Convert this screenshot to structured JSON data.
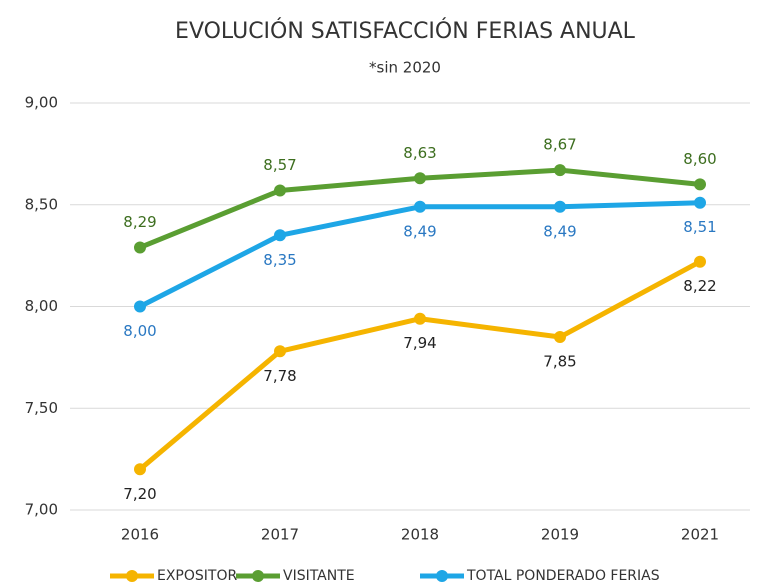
{
  "chart_data": {
    "type": "line",
    "title": "EVOLUCIÓN SATISFACCIÓN FERIAS ANUAL",
    "subtitle": "*sin 2020",
    "categories": [
      "2016",
      "2017",
      "2018",
      "2019",
      "2021"
    ],
    "series": [
      {
        "name": "EXPOSITOR",
        "color": "#f5b400",
        "values": [
          7.2,
          7.78,
          7.94,
          7.85,
          8.22
        ],
        "value_labels": [
          "7,20",
          "7,78",
          "7,94",
          "7,85",
          "8,22"
        ]
      },
      {
        "name": "VISITANTE",
        "color": "#5a9e32",
        "values": [
          8.29,
          8.57,
          8.63,
          8.67,
          8.6
        ],
        "value_labels": [
          "8,29",
          "8,57",
          "8,63",
          "8,67",
          "8,60"
        ]
      },
      {
        "name": "TOTAL PONDERADO FERIAS",
        "color": "#1ea6e6",
        "values": [
          8.0,
          8.35,
          8.49,
          8.49,
          8.51
        ],
        "value_labels": [
          "8,00",
          "8,35",
          "8,49",
          "8,49",
          "8,51"
        ]
      }
    ],
    "ylim": [
      7,
      9
    ],
    "yticks": [
      {
        "value": 7,
        "label": "7,00"
      },
      {
        "value": 7.5,
        "label": "7,50"
      },
      {
        "value": 8,
        "label": "8,00"
      },
      {
        "value": 8.5,
        "label": "8,50"
      },
      {
        "value": 9,
        "label": "9,00"
      }
    ],
    "grid": true,
    "legend": "bottom"
  }
}
